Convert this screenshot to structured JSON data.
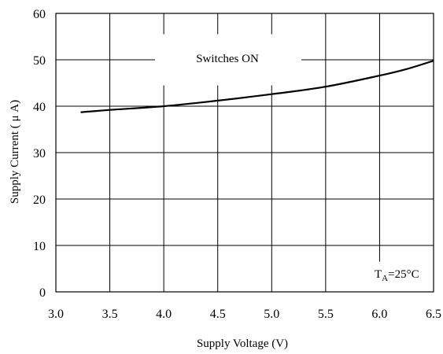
{
  "chart_data": {
    "type": "line",
    "xlabel": "Supply Voltage (V)",
    "ylabel": "Supply Current ( μ A)",
    "xlim": [
      3.0,
      6.5
    ],
    "ylim": [
      0,
      60
    ],
    "xticks": [
      "3.0",
      "3.5",
      "4.0",
      "4.5",
      "5.0",
      "5.5",
      "6.0",
      "6.5"
    ],
    "yticks": [
      "0",
      "10",
      "20",
      "30",
      "40",
      "50",
      "60"
    ],
    "grid": true,
    "series": [
      {
        "name": "Switches ON",
        "x": [
          3.23,
          3.5,
          4.0,
          4.5,
          5.0,
          5.5,
          6.0,
          6.25,
          6.5
        ],
        "y": [
          38.7,
          39.2,
          40.0,
          41.2,
          42.6,
          44.2,
          46.6,
          48.0,
          49.8
        ]
      }
    ],
    "annotations": {
      "series_label": "Switches ON",
      "temperature_base": "T",
      "temperature_sub": "A",
      "temperature_rest": "=25°C"
    }
  }
}
